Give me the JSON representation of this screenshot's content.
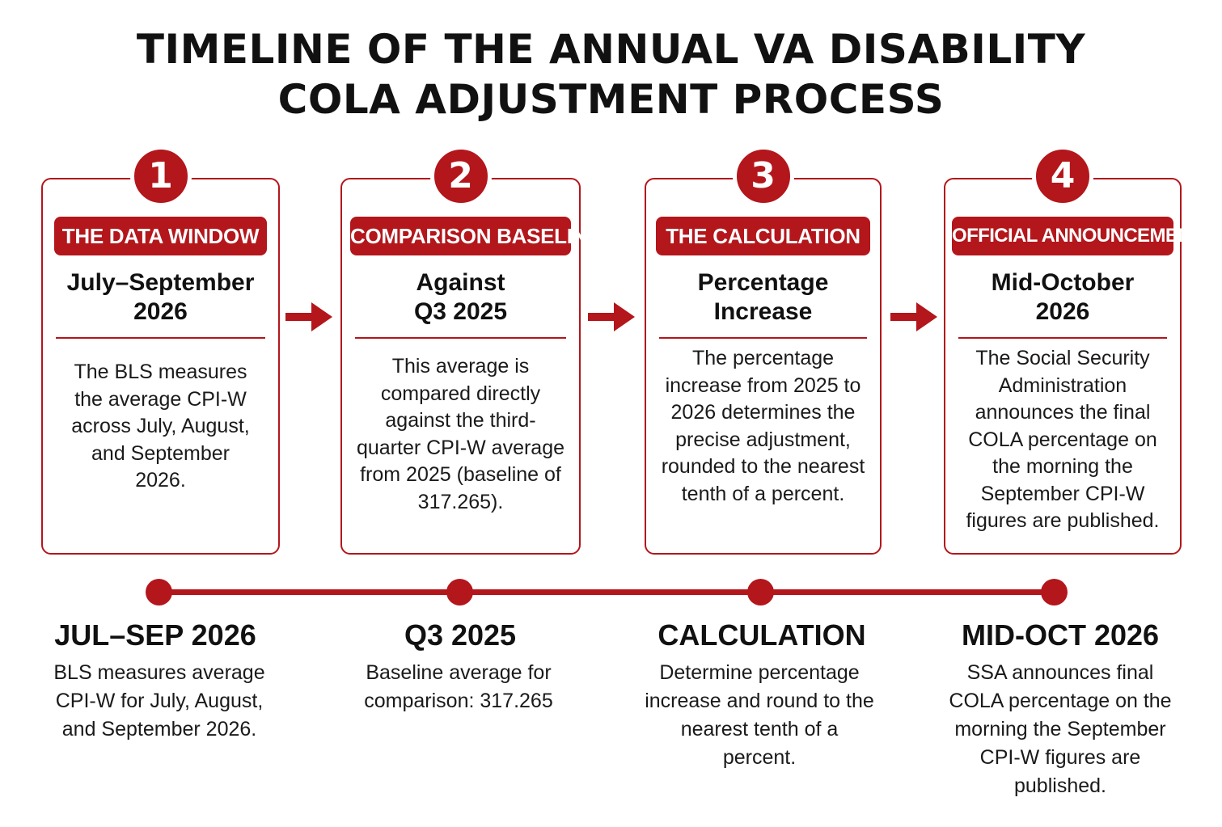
{
  "title": {
    "line1": "TIMELINE OF THE ANNUAL VA DISABILITY",
    "line2": "COLA ADJUSTMENT PROCESS"
  },
  "accent_color": "#b3161b",
  "steps": [
    {
      "number": "1",
      "badge": "THE DATA WINDOW",
      "heading_line1": "July–September",
      "heading_line2": "2026",
      "description": "The BLS measures the average CPI-W across July, August, and September 2026."
    },
    {
      "number": "2",
      "badge": "COMPARISON BASELINE",
      "heading_line1": "Against",
      "heading_line2": "Q3 2025",
      "description": "This average is compared directly against the third-quarter CPI-W average from 2025 (baseline of 317.265)."
    },
    {
      "number": "3",
      "badge": "THE CALCULATION",
      "heading_line1": "Percentage",
      "heading_line2": "Increase",
      "description": "The percentage increase from 2025 to 2026 determines the precise adjustment, rounded to the nearest tenth of a percent."
    },
    {
      "number": "4",
      "badge": "OFFICIAL ANNOUNCEMENT",
      "heading_line1": "Mid-October",
      "heading_line2": "2026",
      "description": "The Social Security Administration announces the final COLA percentage on the morning the September CPI-W figures are published."
    }
  ],
  "timeline": [
    {
      "label": "JUL–SEP 2026",
      "description": "BLS measures average CPI-W for July, August, and September 2026."
    },
    {
      "label": "Q3 2025",
      "description": "Baseline average for comparison: 317.265"
    },
    {
      "label": "CALCULATION",
      "description": "Determine percentage increase and round to the nearest tenth of a percent."
    },
    {
      "label": "MID-OCT 2026",
      "description": "SSA announces final COLA percentage on the morning the September CPI-W figures are published."
    }
  ]
}
